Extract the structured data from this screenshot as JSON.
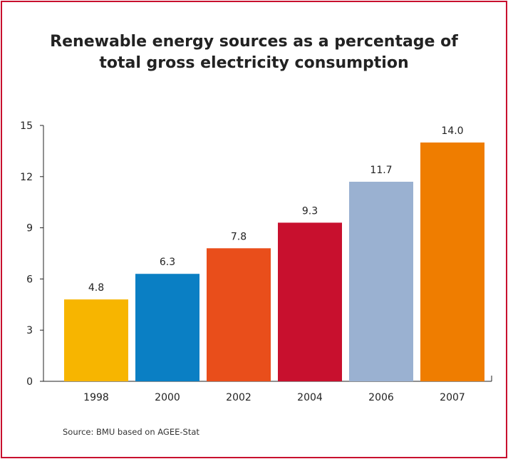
{
  "title_lines": [
    "Renewable energy sources as a percentage of",
    "total gross electricity consumption"
  ],
  "source": "Source: BMU based on AGEE-Stat",
  "colors": {
    "border": "#c8102e",
    "bars": [
      "#f7b500",
      "#0a7fc4",
      "#e94e1b",
      "#c8102e",
      "#9ab1d1",
      "#ef7d00"
    ]
  },
  "chart_data": {
    "type": "bar",
    "title": "Renewable energy sources as a percentage of total gross electricity consumption",
    "categories": [
      "1998",
      "2000",
      "2002",
      "2004",
      "2006",
      "2007"
    ],
    "values": [
      4.8,
      6.3,
      7.8,
      9.3,
      11.7,
      14.0
    ],
    "data_labels": [
      "4.8",
      "6.3",
      "7.8",
      "9.3",
      "11.7",
      "14.0"
    ],
    "yticks": [
      "0",
      "3",
      "6",
      "9",
      "12",
      "15"
    ],
    "ylim": [
      0,
      15
    ],
    "xlabel": "",
    "ylabel": "",
    "grid": false,
    "legend": "none"
  }
}
